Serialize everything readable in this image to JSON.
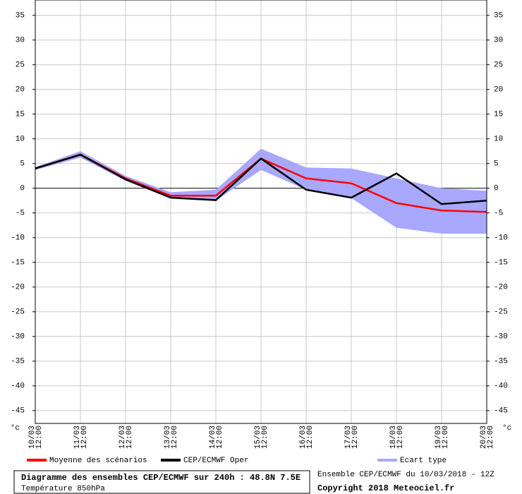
{
  "chart_data": {
    "type": "line",
    "title": "Diagramme des ensembles CEP/ECMWF sur 240h : 48.8N 7.5E",
    "subtitle": "Température 850hPa",
    "run": "Ensemble CEP/ECMWF du 10/03/2018 - 12Z",
    "copyright": "Copyright 2018 Meteociel.fr",
    "y_unit": "°c",
    "categories": [
      "10/03 12:00",
      "11/03 12:00",
      "12/03 12:00",
      "13/03 12:00",
      "14/03 12:00",
      "15/03 12:00",
      "16/03 12:00",
      "17/03 12:00",
      "18/03 12:00",
      "19/03 12:00",
      "20/03 12:00"
    ],
    "series": [
      {
        "name": "Ecart type",
        "color": "#a8a8ff",
        "high": [
          4.3,
          7.5,
          2.5,
          -0.8,
          -0.3,
          8,
          4.2,
          4,
          2,
          0,
          -0.5
        ],
        "low": [
          3.7,
          6.2,
          1.5,
          -2.1,
          -2.5,
          3.7,
          -0.3,
          -2,
          -8,
          -9.2,
          -9.2
        ]
      },
      {
        "name": "Moyenne des scénarios",
        "color": "#ff0000",
        "values": [
          4,
          6.8,
          2,
          -1.5,
          -1.5,
          6,
          2,
          1,
          -3,
          -4.5,
          -4.8
        ]
      },
      {
        "name": "CEP/ECMWF Oper",
        "color": "#000000",
        "values": [
          4,
          6.8,
          1.8,
          -1.9,
          -2.4,
          6,
          -0.3,
          -1.9,
          3,
          -3.2,
          -2.5
        ]
      }
    ],
    "ylim": [
      -47.6,
      38.1
    ],
    "yticks": [
      35,
      30,
      25,
      20,
      15,
      10,
      5,
      0,
      -5,
      -10,
      -15,
      -20,
      -25,
      -30,
      -35,
      -40,
      -45
    ],
    "grid": true
  }
}
